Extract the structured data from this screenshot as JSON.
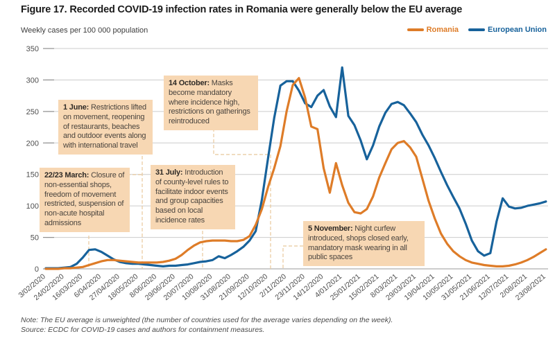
{
  "figure": {
    "title": "Figure 17. Recorded COVID-19 infection rates in Romania were generally below the EU average",
    "y_axis_title": "Weekly cases per 100 000 population",
    "note": "Note: The EU average is unweighted (the number of countries used for the average varies depending on the week).",
    "source": "Source: ECDC for COVID-19 cases and authors for containment measures."
  },
  "legend": [
    {
      "label": "Romania",
      "color": "#DE7C28"
    },
    {
      "label": "European Union",
      "color": "#17629B"
    }
  ],
  "annotations": [
    {
      "date": "22/23 March:",
      "body": " Closure of non-essential shops, freedom of movement restricted, suspension of non-acute hospital admissions"
    },
    {
      "date": "1 June:",
      "body": " Restrictions lifted on movement, reopening of restaurants, beaches and outdoor events along with international travel"
    },
    {
      "date": "31 July:",
      "body": " Introduction of county-level rules to facilitate indoor events and group capacities based on local incidence rates"
    },
    {
      "date": "14 October:",
      "body": " Masks become mandatory where incidence high, restrictions on gatherings reintroduced"
    },
    {
      "date": "5 November:",
      "body": " Night curfew introduced, shops closed early, mandatory mask wearing in all public spaces"
    }
  ],
  "chart_data": {
    "type": "line",
    "title": "Figure 17. Recorded COVID-19 infection rates in Romania were generally below the EU average",
    "ylabel": "Weekly cases per 100 000 population",
    "ylim": [
      0,
      350
    ],
    "y_ticks": [
      0,
      50,
      100,
      150,
      200,
      250,
      300,
      350
    ],
    "x_tick_step_weeks": 3,
    "x_tick_labels": [
      "3/02/2020",
      "24/02/2020",
      "16/03/2020",
      "6/04/2020",
      "27/04/2020",
      "18/05/2020",
      "8/06/2020",
      "29/06/2020",
      "20/07/2020",
      "10/08/2020",
      "31/08/2020",
      "21/09/2020",
      "12/10/2020",
      "2/11/2020",
      "23/11/2020",
      "14/12/2020",
      "4/01/2021",
      "25/01/2021",
      "15/02/2021",
      "8/03/2021",
      "29/03/2021",
      "19/04/2021",
      "10/05/2021",
      "31/05/2021",
      "21/06/2021",
      "12/07/2021",
      "2/08/2021",
      "23/08/2021"
    ],
    "grid": true,
    "legend_position": "top-right",
    "series": [
      {
        "name": "European Union",
        "color": "#17629B",
        "values": [
          1,
          1,
          1,
          2,
          3,
          8,
          18,
          30,
          31,
          27,
          21,
          15,
          11,
          9,
          8,
          8,
          7,
          6,
          5,
          4,
          5,
          5,
          6,
          7,
          9,
          11,
          12,
          14,
          20,
          17,
          22,
          28,
          35,
          45,
          60,
          110,
          176,
          240,
          291,
          298,
          298,
          283,
          263,
          257,
          275,
          284,
          258,
          241,
          320,
          243,
          228,
          204,
          174,
          196,
          226,
          248,
          262,
          265,
          260,
          247,
          233,
          213,
          196,
          176,
          154,
          133,
          114,
          96,
          72,
          45,
          28,
          21,
          25,
          75,
          112,
          99,
          96,
          97,
          100,
          102,
          104,
          107
        ]
      },
      {
        "name": "Romania",
        "color": "#DE7C28",
        "values": [
          0,
          0,
          0,
          1,
          1,
          2,
          3,
          6,
          9,
          12,
          14,
          14,
          13,
          12,
          11,
          10,
          10,
          10,
          10,
          11,
          13,
          16,
          22,
          30,
          37,
          42,
          44,
          45,
          45,
          45,
          44,
          44,
          46,
          52,
          70,
          95,
          130,
          160,
          195,
          250,
          292,
          303,
          272,
          226,
          222,
          160,
          121,
          168,
          133,
          105,
          90,
          88,
          95,
          115,
          145,
          168,
          190,
          200,
          203,
          193,
          178,
          143,
          108,
          80,
          56,
          40,
          28,
          20,
          14,
          10,
          8,
          6,
          5,
          4,
          4,
          5,
          7,
          10,
          14,
          19,
          25,
          31
        ]
      }
    ]
  }
}
